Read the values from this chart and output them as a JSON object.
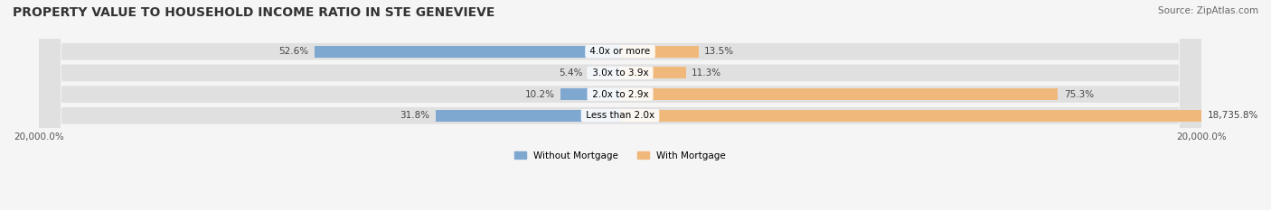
{
  "title": "PROPERTY VALUE TO HOUSEHOLD INCOME RATIO IN STE GENEVIEVE",
  "source": "Source: ZipAtlas.com",
  "categories": [
    "Less than 2.0x",
    "2.0x to 2.9x",
    "3.0x to 3.9x",
    "4.0x or more"
  ],
  "without_mortgage": [
    31.8,
    10.2,
    5.4,
    52.6
  ],
  "with_mortgage": [
    18735.8,
    75.3,
    11.3,
    13.5
  ],
  "without_mortgage_pct_labels": [
    "31.8%",
    "10.2%",
    "5.4%",
    "52.6%"
  ],
  "with_mortgage_pct_labels": [
    "18,735.8%",
    "75.3%",
    "11.3%",
    "13.5%"
  ],
  "color_without": "#7fa8d0",
  "color_with": "#f0b87a",
  "bg_bar": "#e8e8e8",
  "bg_chart": "#f5f5f5",
  "x_min": -20000,
  "x_max": 20000,
  "xlabel_left": "20,000.0%",
  "xlabel_right": "20,000.0%",
  "legend_without": "Without Mortgage",
  "legend_with": "With Mortgage",
  "title_fontsize": 10,
  "source_fontsize": 7.5,
  "label_fontsize": 7.5,
  "tick_fontsize": 7.5
}
